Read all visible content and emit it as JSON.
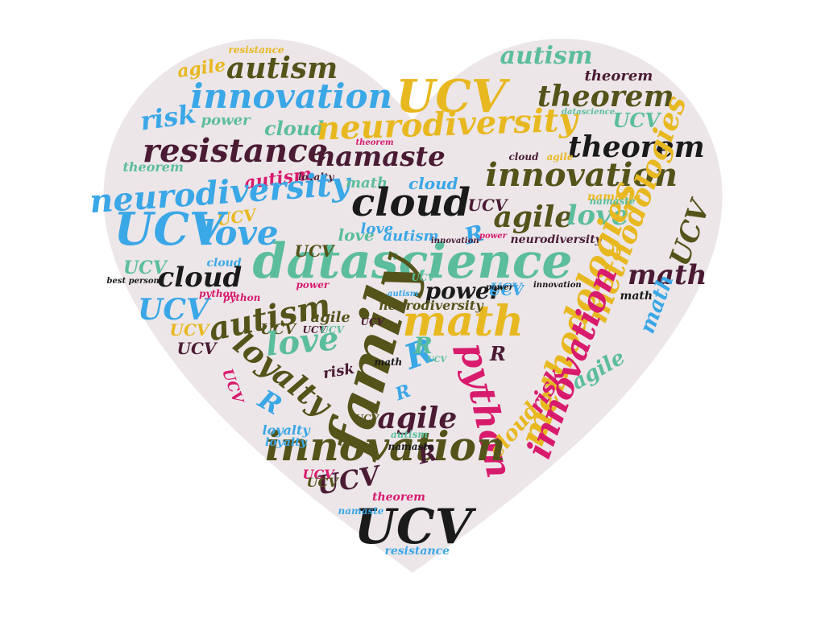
{
  "palette": {
    "background": "#ece6e9",
    "black": "#1a1a1a",
    "olive": "#54531a",
    "maroon": "#4a1b33",
    "yellow": "#e8b820",
    "teal": "#5bbd9c",
    "blue": "#3aa7e6",
    "pink": "#d81b6d"
  },
  "words": [
    {
      "text": "resistance",
      "color": "yellow"
    },
    {
      "text": "agile",
      "color": "yellow"
    },
    {
      "text": "autism",
      "color": "olive"
    },
    {
      "text": "autism",
      "color": "teal"
    },
    {
      "text": "innovation",
      "color": "blue"
    },
    {
      "text": "UCV",
      "color": "yellow"
    },
    {
      "text": "theorem",
      "color": "maroon"
    },
    {
      "text": "theorem",
      "color": "olive"
    },
    {
      "text": "risk",
      "color": "blue"
    },
    {
      "text": "power",
      "color": "teal"
    },
    {
      "text": "cloud",
      "color": "teal"
    },
    {
      "text": "neurodiversity",
      "color": "yellow"
    },
    {
      "text": "UCV",
      "color": "teal"
    },
    {
      "text": "datascience",
      "color": "teal"
    },
    {
      "text": "resistance",
      "color": "maroon"
    },
    {
      "text": "namaste",
      "color": "maroon"
    },
    {
      "text": "theorem",
      "color": "black"
    },
    {
      "text": "theorem",
      "color": "teal"
    },
    {
      "text": "autism",
      "color": "pink"
    },
    {
      "text": "loyalty",
      "color": "maroon"
    },
    {
      "text": "theorem",
      "color": "pink"
    },
    {
      "text": "cloud",
      "color": "maroon"
    },
    {
      "text": "innovation",
      "color": "olive"
    },
    {
      "text": "neurodiversity",
      "color": "blue"
    },
    {
      "text": "math",
      "color": "teal"
    },
    {
      "text": "cloud",
      "color": "blue"
    },
    {
      "text": "cloud",
      "color": "black"
    },
    {
      "text": "UCV",
      "color": "maroon"
    },
    {
      "text": "namaste",
      "color": "yellow"
    },
    {
      "text": "UCV",
      "color": "yellow"
    },
    {
      "text": "UCV",
      "color": "blue"
    },
    {
      "text": "love",
      "color": "blue"
    },
    {
      "text": "agile",
      "color": "olive"
    },
    {
      "text": "love",
      "color": "teal"
    },
    {
      "text": "methodologies",
      "color": "yellow"
    },
    {
      "text": "UCV",
      "color": "olive"
    },
    {
      "text": "love",
      "color": "teal"
    },
    {
      "text": "autism",
      "color": "blue"
    },
    {
      "text": "R",
      "color": "blue"
    },
    {
      "text": "power",
      "color": "pink"
    },
    {
      "text": "neurodiversity",
      "color": "maroon"
    },
    {
      "text": "datascience",
      "color": "teal"
    },
    {
      "text": "UCV",
      "color": "olive"
    },
    {
      "text": "cloud",
      "color": "blue"
    },
    {
      "text": "UCV",
      "color": "teal"
    },
    {
      "text": "cloud",
      "color": "black"
    },
    {
      "text": "power",
      "color": "black"
    },
    {
      "text": "UCV",
      "color": "blue"
    },
    {
      "text": "innovation",
      "color": "black"
    },
    {
      "text": "math",
      "color": "maroon"
    },
    {
      "text": "power",
      "color": "pink"
    },
    {
      "text": "python",
      "color": "pink"
    },
    {
      "text": "math",
      "color": "black"
    },
    {
      "text": "math",
      "color": "blue"
    },
    {
      "text": "UCV",
      "color": "blue"
    },
    {
      "text": "autism",
      "color": "olive"
    },
    {
      "text": "family",
      "color": "olive"
    },
    {
      "text": "math",
      "color": "yellow"
    },
    {
      "text": "methodologies",
      "color": "yellow"
    },
    {
      "text": "innovation",
      "color": "pink"
    },
    {
      "text": "UCV",
      "color": "yellow"
    },
    {
      "text": "UCV",
      "color": "olive"
    },
    {
      "text": "UCV",
      "color": "maroon"
    },
    {
      "text": "love",
      "color": "teal"
    },
    {
      "text": "loyalty",
      "color": "olive"
    },
    {
      "text": "R",
      "color": "blue"
    },
    {
      "text": "python",
      "color": "pink"
    },
    {
      "text": "R",
      "color": "maroon"
    },
    {
      "text": "agile",
      "color": "teal"
    },
    {
      "text": "UCV",
      "color": "maroon"
    },
    {
      "text": "UCV",
      "color": "pink"
    },
    {
      "text": "risk",
      "color": "maroon"
    },
    {
      "text": "risk",
      "color": "pink"
    },
    {
      "text": "R",
      "color": "blue"
    },
    {
      "text": "agile",
      "color": "maroon"
    },
    {
      "text": "cloud",
      "color": "yellow"
    },
    {
      "text": "R",
      "color": "blue"
    },
    {
      "text": "innovation",
      "color": "olive"
    },
    {
      "text": "R",
      "color": "maroon"
    },
    {
      "text": "UCV",
      "color": "maroon"
    },
    {
      "text": "loyalty",
      "color": "blue"
    },
    {
      "text": "UCV",
      "color": "pink"
    },
    {
      "text": "theorem",
      "color": "pink"
    },
    {
      "text": "UCV",
      "color": "black"
    },
    {
      "text": "namaste",
      "color": "blue"
    },
    {
      "text": "resistance",
      "color": "blue"
    },
    {
      "text": "best person",
      "color": "black"
    },
    {
      "text": "python",
      "color": "pink"
    },
    {
      "text": "agile",
      "color": "olive"
    },
    {
      "text": "UCV",
      "color": "olive"
    },
    {
      "text": "namaste",
      "color": "teal"
    },
    {
      "text": "UCV",
      "color": "blue"
    },
    {
      "text": "loyalty",
      "color": "blue"
    },
    {
      "text": "neurodiversity",
      "color": "olive"
    },
    {
      "text": "love",
      "color": "blue"
    },
    {
      "text": "autism",
      "color": "blue"
    },
    {
      "text": "R",
      "color": "teal"
    },
    {
      "text": "agile",
      "color": "yellow"
    },
    {
      "text": "UCV",
      "color": "olive"
    },
    {
      "text": "innovation",
      "color": "maroon"
    },
    {
      "text": "autism",
      "color": "teal"
    },
    {
      "text": "namaste",
      "color": "black"
    },
    {
      "text": "power",
      "color": "black"
    },
    {
      "text": "UCV",
      "color": "teal"
    },
    {
      "text": "math",
      "color": "black"
    },
    {
      "text": "UCV",
      "color": "teal"
    },
    {
      "text": "UCV",
      "color": "teal"
    },
    {
      "text": "UCV",
      "color": "maroon"
    },
    {
      "text": "R",
      "color": "teal"
    }
  ]
}
